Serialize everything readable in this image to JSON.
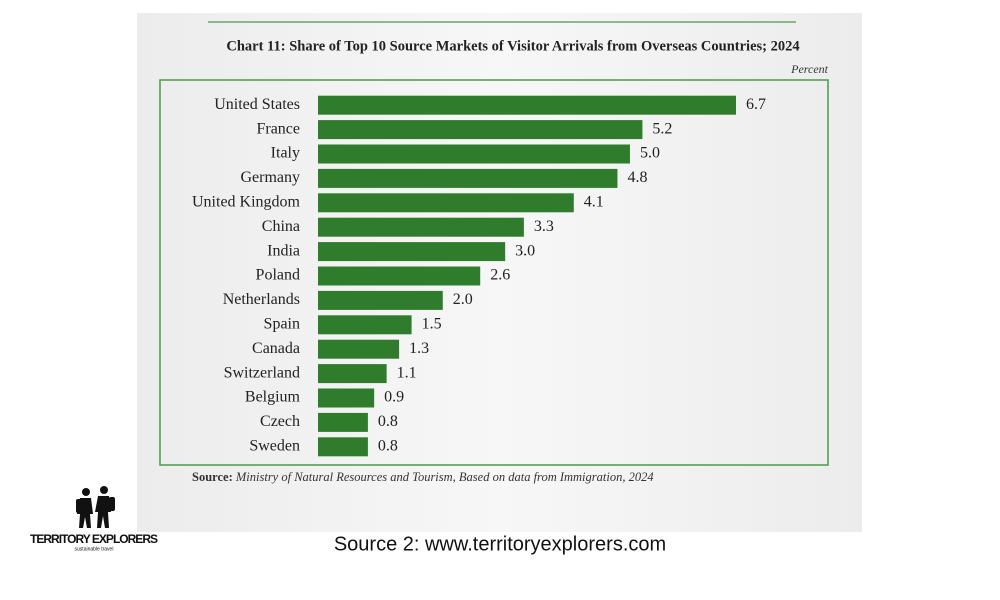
{
  "chart_data": {
    "type": "bar",
    "orientation": "horizontal",
    "title": "Chart 11: Share of Top 10 Source Markets of Visitor Arrivals from Overseas Countries; 2024",
    "unit_label": "Percent",
    "categories": [
      "United States",
      "France",
      "Italy",
      "Germany",
      "United Kingdom",
      "China",
      "India",
      "Poland",
      "Netherlands",
      "Spain",
      "Canada",
      "Switzerland",
      "Belgium",
      "Czech",
      "Sweden"
    ],
    "values": [
      6.7,
      5.2,
      5.0,
      4.8,
      4.1,
      3.3,
      3.0,
      2.6,
      2.0,
      1.5,
      1.3,
      1.1,
      0.9,
      0.8,
      0.8
    ],
    "value_labels": [
      "6.7",
      "5.2",
      "5.0",
      "4.8",
      "4.1",
      "3.3",
      "3.0",
      "2.6",
      "2.0",
      "1.5",
      "1.3",
      "1.1",
      "0.9",
      "0.8",
      "0.8"
    ],
    "color": "#2f7d2c"
  },
  "source": {
    "label": "Source:",
    "text": "Ministry of Natural Resources and Tourism, Based on data from Immigration, 2024"
  },
  "logo": {
    "name": "TERRITORY EXPLORERS",
    "tagline": "sustainable travel"
  },
  "caption": "Source 2: www.territoryexplorers.com"
}
